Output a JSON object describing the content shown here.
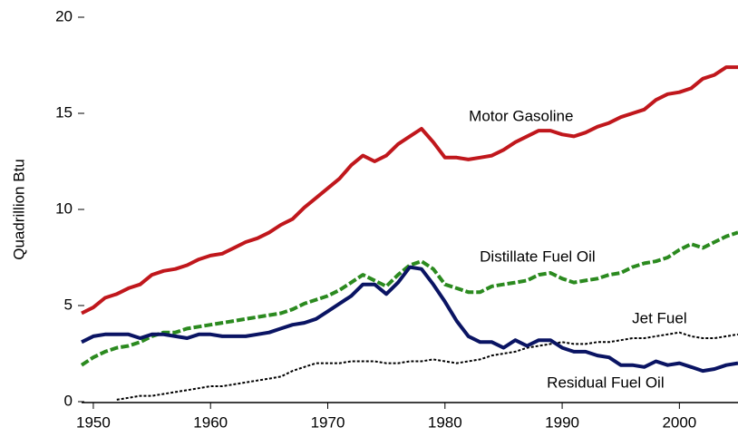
{
  "chart_data": {
    "type": "line",
    "y_label": "Quadrillion Btu",
    "x": [
      1949,
      1950,
      1951,
      1952,
      1953,
      1954,
      1955,
      1956,
      1957,
      1958,
      1959,
      1960,
      1961,
      1962,
      1963,
      1964,
      1965,
      1966,
      1967,
      1968,
      1969,
      1970,
      1971,
      1972,
      1973,
      1974,
      1975,
      1976,
      1977,
      1978,
      1979,
      1980,
      1981,
      1982,
      1983,
      1984,
      1985,
      1986,
      1987,
      1988,
      1989,
      1990,
      1991,
      1992,
      1993,
      1994,
      1995,
      1996,
      1997,
      1998,
      1999,
      2000,
      2001,
      2002,
      2003,
      2004,
      2005
    ],
    "series": [
      {
        "name": "Motor Gasoline",
        "color": "#c0171c",
        "style": "solid",
        "values": [
          4.6,
          4.9,
          5.4,
          5.6,
          5.9,
          6.1,
          6.6,
          6.8,
          6.9,
          7.1,
          7.4,
          7.6,
          7.7,
          8.0,
          8.3,
          8.5,
          8.8,
          9.2,
          9.5,
          10.1,
          10.6,
          11.1,
          11.6,
          12.3,
          12.8,
          12.5,
          12.8,
          13.4,
          13.8,
          14.2,
          13.5,
          12.7,
          12.7,
          12.6,
          12.7,
          12.8,
          13.1,
          13.5,
          13.8,
          14.1,
          14.1,
          13.9,
          13.8,
          14.0,
          14.3,
          14.5,
          14.8,
          15.0,
          15.2,
          15.7,
          16.0,
          16.1,
          16.3,
          16.8,
          17.0,
          17.4,
          17.4
        ]
      },
      {
        "name": "Distillate Fuel Oil",
        "color": "#2b8a1f",
        "style": "dashed",
        "values": [
          1.9,
          2.3,
          2.6,
          2.8,
          2.9,
          3.1,
          3.4,
          3.6,
          3.6,
          3.8,
          3.9,
          4.0,
          4.1,
          4.2,
          4.3,
          4.4,
          4.5,
          4.6,
          4.8,
          5.1,
          5.3,
          5.5,
          5.8,
          6.2,
          6.6,
          6.3,
          6.0,
          6.6,
          7.1,
          7.3,
          6.9,
          6.1,
          5.9,
          5.7,
          5.7,
          6.0,
          6.1,
          6.2,
          6.3,
          6.6,
          6.7,
          6.4,
          6.2,
          6.3,
          6.4,
          6.6,
          6.7,
          7.0,
          7.2,
          7.3,
          7.5,
          7.9,
          8.2,
          8.0,
          8.3,
          8.6,
          8.8
        ]
      },
      {
        "name": "Jet Fuel",
        "color": "#000000",
        "style": "dotted",
        "values": [
          null,
          null,
          null,
          0.1,
          0.2,
          0.3,
          0.3,
          0.4,
          0.5,
          0.6,
          0.7,
          0.8,
          0.8,
          0.9,
          1.0,
          1.1,
          1.2,
          1.3,
          1.6,
          1.8,
          2.0,
          2.0,
          2.0,
          2.1,
          2.1,
          2.1,
          2.0,
          2.0,
          2.1,
          2.1,
          2.2,
          2.1,
          2.0,
          2.1,
          2.2,
          2.4,
          2.5,
          2.6,
          2.8,
          2.9,
          3.0,
          3.1,
          3.0,
          3.0,
          3.1,
          3.1,
          3.2,
          3.3,
          3.3,
          3.4,
          3.5,
          3.6,
          3.4,
          3.3,
          3.3,
          3.4,
          3.5
        ]
      },
      {
        "name": "Residual Fuel Oil",
        "color": "#0a1463",
        "style": "solid",
        "values": [
          3.1,
          3.4,
          3.5,
          3.5,
          3.5,
          3.3,
          3.5,
          3.5,
          3.4,
          3.3,
          3.5,
          3.5,
          3.4,
          3.4,
          3.4,
          3.5,
          3.6,
          3.8,
          4.0,
          4.1,
          4.3,
          4.7,
          5.1,
          5.5,
          6.1,
          6.1,
          5.6,
          6.2,
          7.0,
          6.9,
          6.1,
          5.2,
          4.2,
          3.4,
          3.1,
          3.1,
          2.8,
          3.2,
          2.9,
          3.2,
          3.2,
          2.8,
          2.6,
          2.6,
          2.4,
          2.3,
          1.9,
          1.9,
          1.8,
          2.1,
          1.9,
          2.0,
          1.8,
          1.6,
          1.7,
          1.9,
          2.0
        ]
      }
    ],
    "xlim": [
      1949,
      2005
    ],
    "xticks": [
      1950,
      1960,
      1970,
      1980,
      1990,
      2000
    ],
    "ylim": [
      0,
      20
    ],
    "yticks": [
      0,
      5,
      10,
      15,
      20
    ],
    "grid": false
  }
}
